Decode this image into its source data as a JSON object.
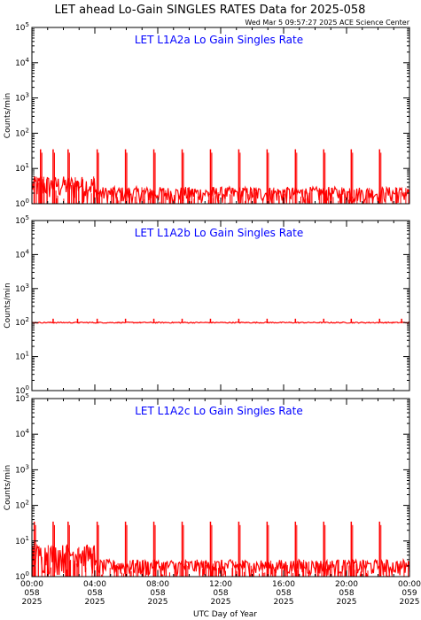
{
  "page": {
    "title": "LET ahead Lo-Gain SINGLES RATES Data for 2025-058",
    "timestamp": "Wed Mar  5 09:57:27 2025 ACE Science Center"
  },
  "colors": {
    "series": "#ff0000",
    "panel_title": "#0000ff",
    "axes": "#000000"
  },
  "chart_data": [
    {
      "type": "line",
      "title": "LET L1A2a Lo Gain Singles Rate",
      "ylabel": "Counts/min",
      "yscale": "log",
      "ylim": [
        1,
        100000
      ],
      "yticks": [
        "10^0",
        "10^1",
        "10^2",
        "10^3",
        "10^4",
        "10^5"
      ],
      "xlim": [
        0,
        24
      ],
      "baseline": 1.5,
      "noise_max": 3,
      "early_noise_max": 6,
      "spike_peak": 35,
      "spike_hours": [
        0.55,
        1.35,
        2.3,
        4.15,
        5.95,
        7.75,
        9.55,
        11.35,
        13.15,
        14.95,
        16.75,
        18.55,
        20.3,
        22.1
      ]
    },
    {
      "type": "line",
      "title": "LET L1A2b Lo Gain Singles Rate",
      "ylabel": "Counts/min",
      "yscale": "log",
      "ylim": [
        1,
        100000
      ],
      "yticks": [
        "10^0",
        "10^1",
        "10^2",
        "10^3",
        "10^4",
        "10^5"
      ],
      "xlim": [
        0,
        24
      ],
      "baseline": 100,
      "noise_max": 115,
      "spike_peak": 130,
      "spike_hours": [
        1.35,
        2.9,
        4.15,
        5.95,
        7.75,
        9.55,
        11.35,
        13.15,
        14.95,
        16.75,
        18.55,
        20.3,
        22.1,
        23.5
      ]
    },
    {
      "type": "line",
      "title": "LET L1A2c Lo Gain Singles Rate",
      "ylabel": "Counts/min",
      "yscale": "log",
      "ylim": [
        1,
        100000
      ],
      "yticks": [
        "10^0",
        "10^1",
        "10^2",
        "10^3",
        "10^4",
        "10^5"
      ],
      "xlim": [
        0,
        24
      ],
      "baseline": 1.5,
      "noise_max": 3,
      "early_noise_max": 8,
      "spike_peak": 35,
      "spike_hours": [
        0.15,
        1.35,
        2.3,
        4.15,
        5.95,
        7.75,
        9.55,
        11.35,
        13.15,
        14.95,
        16.75,
        18.55,
        20.3,
        22.1
      ]
    }
  ],
  "x_axis": {
    "label": "UTC Day of Year",
    "ticks": [
      {
        "hour": 0,
        "time": "00:00",
        "doy": "058",
        "year": "2025"
      },
      {
        "hour": 4,
        "time": "04:00",
        "doy": "058",
        "year": "2025"
      },
      {
        "hour": 8,
        "time": "08:00",
        "doy": "058",
        "year": "2025"
      },
      {
        "hour": 12,
        "time": "12:00",
        "doy": "058",
        "year": "2025"
      },
      {
        "hour": 16,
        "time": "16:00",
        "doy": "058",
        "year": "2025"
      },
      {
        "hour": 20,
        "time": "20:00",
        "doy": "058",
        "year": "2025"
      },
      {
        "hour": 24,
        "time": "00:00",
        "doy": "059",
        "year": "2025"
      }
    ]
  }
}
